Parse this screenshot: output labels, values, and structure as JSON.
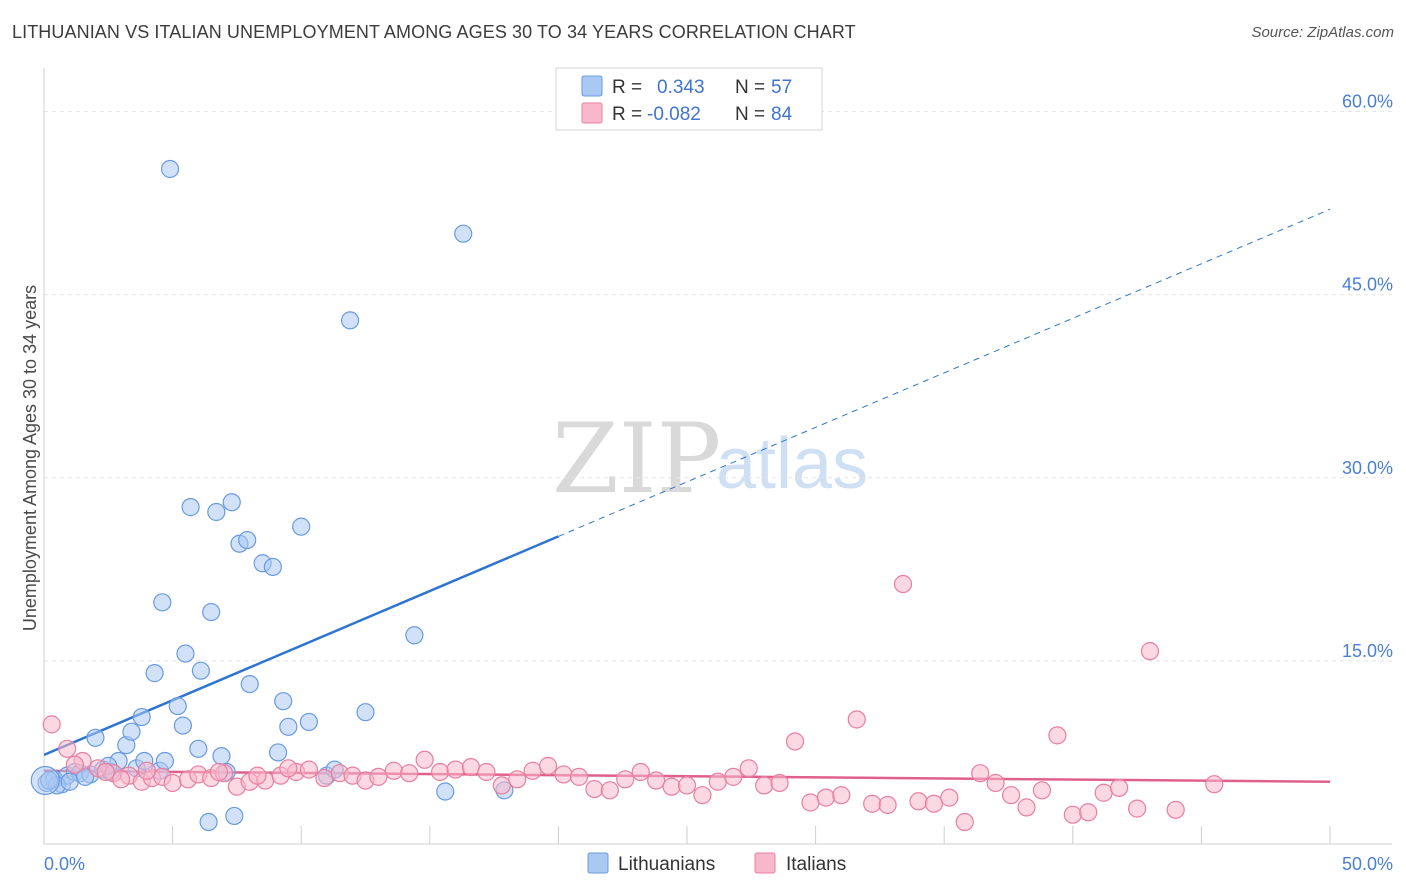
{
  "header": {
    "title": "LITHUANIAN VS ITALIAN UNEMPLOYMENT AMONG AGES 30 TO 34 YEARS CORRELATION CHART",
    "source": "Source: ZipAtlas.com"
  },
  "watermark": {
    "zip": "ZIP",
    "atlas": "atlas"
  },
  "legend": {
    "r_label": "R =",
    "n_label": "N =",
    "rows": [
      {
        "r": "0.343",
        "n": "57",
        "color": "#a9c8f2"
      },
      {
        "r": "-0.082",
        "n": "84",
        "color": "#f7b8cb"
      }
    ]
  },
  "bottom_legend": [
    "Lithuanians",
    "Italians"
  ],
  "chart_data": {
    "type": "scatter",
    "title": "LITHUANIAN VS ITALIAN UNEMPLOYMENT AMONG AGES 30 TO 34 YEARS CORRELATION CHART",
    "xlabel": "",
    "ylabel": "Unemployment Among Ages 30 to 34 years",
    "xlim": [
      0,
      50
    ],
    "ylim": [
      0,
      63
    ],
    "y_ticks": [
      15,
      30,
      45,
      60
    ],
    "y_tick_labels": [
      "15.0%",
      "30.0%",
      "45.0%",
      "60.0%"
    ],
    "x_tick_labels": [
      "0.0%",
      "50.0%"
    ],
    "x_tick_values": [
      0,
      50
    ],
    "series": [
      {
        "name": "Lithuanians",
        "color": "#6a9be0",
        "fill": "#a9c8f2",
        "trend": {
          "x0": 0,
          "y0": 7.3,
          "x1": 20,
          "y1": 25.2,
          "dash_x1": 50,
          "dash_y1": 52
        },
        "points": [
          [
            0.1,
            5.0
          ],
          [
            0.4,
            5.3
          ],
          [
            0.7,
            4.9
          ],
          [
            0.9,
            5.6
          ],
          [
            1.2,
            5.9
          ],
          [
            1.4,
            5.8
          ],
          [
            1.8,
            5.7
          ],
          [
            2.0,
            8.7
          ],
          [
            2.3,
            6.1
          ],
          [
            2.6,
            5.9
          ],
          [
            2.9,
            6.8
          ],
          [
            3.2,
            8.1
          ],
          [
            3.4,
            9.2
          ],
          [
            3.6,
            6.2
          ],
          [
            3.8,
            10.4
          ],
          [
            3.9,
            6.8
          ],
          [
            4.3,
            14.0
          ],
          [
            4.5,
            6.0
          ],
          [
            4.6,
            19.8
          ],
          [
            4.7,
            6.8
          ],
          [
            4.9,
            55.3
          ],
          [
            5.2,
            11.3
          ],
          [
            5.4,
            9.7
          ],
          [
            5.5,
            15.6
          ],
          [
            5.7,
            27.6
          ],
          [
            6.0,
            7.8
          ],
          [
            6.1,
            14.2
          ],
          [
            6.4,
            1.8
          ],
          [
            6.5,
            19.0
          ],
          [
            6.7,
            27.2
          ],
          [
            6.9,
            7.2
          ],
          [
            7.1,
            5.9
          ],
          [
            7.3,
            28.0
          ],
          [
            7.4,
            2.3
          ],
          [
            7.6,
            24.6
          ],
          [
            7.9,
            24.9
          ],
          [
            8.0,
            13.1
          ],
          [
            8.5,
            23.0
          ],
          [
            8.9,
            22.7
          ],
          [
            9.1,
            7.5
          ],
          [
            9.3,
            11.7
          ],
          [
            9.5,
            9.6
          ],
          [
            10.0,
            26.0
          ],
          [
            10.3,
            10.0
          ],
          [
            11.0,
            5.6
          ],
          [
            11.3,
            6.1
          ],
          [
            11.9,
            42.9
          ],
          [
            12.5,
            10.8
          ],
          [
            14.4,
            17.1
          ],
          [
            15.6,
            4.3
          ],
          [
            16.3,
            50.0
          ],
          [
            17.9,
            4.4
          ],
          [
            0.5,
            4.8
          ],
          [
            1.0,
            5.1
          ],
          [
            1.6,
            5.5
          ],
          [
            2.5,
            6.4
          ],
          [
            0.2,
            5.2
          ]
        ]
      },
      {
        "name": "Italians",
        "color": "#e87fa0",
        "fill": "#f7b8cb",
        "trend": {
          "x0": 0,
          "y0": 6.0,
          "x1": 50,
          "y1": 5.1
        },
        "points": [
          [
            0.3,
            9.8
          ],
          [
            0.9,
            7.8
          ],
          [
            1.5,
            6.8
          ],
          [
            2.1,
            6.2
          ],
          [
            2.7,
            5.8
          ],
          [
            3.3,
            5.6
          ],
          [
            3.8,
            5.1
          ],
          [
            4.2,
            5.4
          ],
          [
            4.6,
            5.5
          ],
          [
            5.0,
            5.0
          ],
          [
            5.6,
            5.3
          ],
          [
            6.0,
            5.7
          ],
          [
            6.5,
            5.4
          ],
          [
            7.0,
            5.8
          ],
          [
            7.5,
            4.7
          ],
          [
            8.0,
            5.1
          ],
          [
            8.6,
            5.2
          ],
          [
            9.2,
            5.6
          ],
          [
            9.8,
            5.9
          ],
          [
            10.3,
            6.1
          ],
          [
            10.9,
            5.4
          ],
          [
            11.5,
            5.8
          ],
          [
            12.0,
            5.6
          ],
          [
            12.5,
            5.2
          ],
          [
            13.0,
            5.5
          ],
          [
            13.6,
            6.0
          ],
          [
            14.2,
            5.8
          ],
          [
            14.8,
            6.9
          ],
          [
            15.4,
            5.9
          ],
          [
            16.0,
            6.1
          ],
          [
            16.6,
            6.3
          ],
          [
            17.2,
            5.9
          ],
          [
            17.8,
            4.8
          ],
          [
            18.4,
            5.3
          ],
          [
            19.0,
            6.0
          ],
          [
            19.6,
            6.4
          ],
          [
            20.2,
            5.7
          ],
          [
            20.8,
            5.5
          ],
          [
            21.4,
            4.5
          ],
          [
            22.0,
            4.4
          ],
          [
            22.6,
            5.3
          ],
          [
            23.2,
            5.9
          ],
          [
            23.8,
            5.2
          ],
          [
            24.4,
            4.7
          ],
          [
            25.0,
            4.8
          ],
          [
            25.6,
            4.0
          ],
          [
            26.2,
            5.1
          ],
          [
            26.8,
            5.5
          ],
          [
            27.4,
            6.2
          ],
          [
            28.0,
            4.8
          ],
          [
            28.6,
            5.0
          ],
          [
            29.2,
            8.4
          ],
          [
            29.8,
            3.4
          ],
          [
            30.4,
            3.8
          ],
          [
            31.0,
            4.0
          ],
          [
            31.6,
            10.2
          ],
          [
            32.2,
            3.3
          ],
          [
            32.8,
            3.2
          ],
          [
            33.4,
            21.3
          ],
          [
            34.0,
            3.5
          ],
          [
            34.6,
            3.3
          ],
          [
            35.2,
            3.8
          ],
          [
            35.8,
            1.8
          ],
          [
            36.4,
            5.8
          ],
          [
            37.0,
            5.0
          ],
          [
            37.6,
            4.0
          ],
          [
            38.2,
            3.0
          ],
          [
            38.8,
            4.4
          ],
          [
            39.4,
            8.9
          ],
          [
            40.0,
            2.4
          ],
          [
            40.6,
            2.6
          ],
          [
            41.2,
            4.2
          ],
          [
            41.8,
            4.6
          ],
          [
            42.5,
            2.9
          ],
          [
            43.0,
            15.8
          ],
          [
            44.0,
            2.8
          ],
          [
            45.5,
            4.9
          ],
          [
            1.2,
            6.5
          ],
          [
            2.4,
            5.9
          ],
          [
            3.0,
            5.3
          ],
          [
            4.0,
            6.0
          ],
          [
            6.8,
            5.9
          ],
          [
            8.3,
            5.6
          ],
          [
            9.5,
            6.2
          ]
        ]
      }
    ]
  }
}
